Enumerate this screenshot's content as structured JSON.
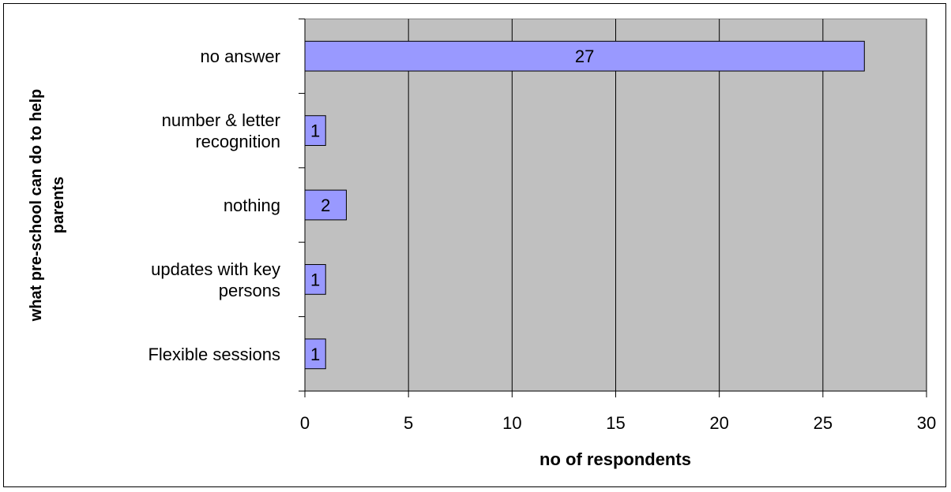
{
  "chart_data": {
    "type": "bar",
    "orientation": "horizontal",
    "categories": [
      "no answer",
      "number & letter recognition",
      "nothing",
      "updates with key persons",
      "Flexible sessions"
    ],
    "category_lines": [
      [
        "no answer"
      ],
      [
        "number & letter",
        "recognition"
      ],
      [
        "nothing"
      ],
      [
        "updates with key",
        "persons"
      ],
      [
        "Flexible sessions"
      ]
    ],
    "values": [
      27,
      1,
      2,
      1,
      1
    ],
    "data_labels": [
      "27",
      "1",
      "2",
      "1",
      "1"
    ],
    "xlabel": "no of respondents",
    "ylabel_lines": [
      "what pre-school can do to help",
      "parents"
    ],
    "xlim": [
      0,
      30
    ],
    "xticks": [
      0,
      5,
      10,
      15,
      20,
      25,
      30
    ],
    "grid": "vertical",
    "legend": "none",
    "colors": {
      "bar": "#9999ff",
      "plot_bg": "#c0c0c0",
      "grid": "#000000"
    }
  }
}
